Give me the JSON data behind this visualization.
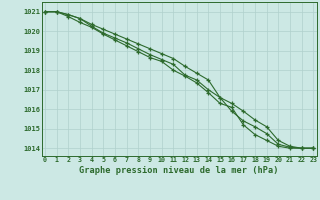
{
  "x": [
    0,
    1,
    2,
    3,
    4,
    5,
    6,
    7,
    8,
    9,
    10,
    11,
    12,
    13,
    14,
    15,
    16,
    17,
    18,
    19,
    20,
    21,
    22,
    23
  ],
  "line1": [
    1021.0,
    1021.0,
    1020.85,
    1020.65,
    1020.35,
    1020.1,
    1019.85,
    1019.6,
    1019.35,
    1019.1,
    1018.85,
    1018.6,
    1018.2,
    1017.85,
    1017.5,
    1016.6,
    1015.9,
    1015.4,
    1015.1,
    1014.75,
    1014.2,
    1014.05,
    1014.0,
    1014.0
  ],
  "line2": [
    1021.0,
    1021.0,
    1020.85,
    1020.65,
    1020.25,
    1019.9,
    1019.65,
    1019.4,
    1019.1,
    1018.8,
    1018.55,
    1018.3,
    1017.75,
    1017.5,
    1017.0,
    1016.6,
    1016.3,
    1015.9,
    1015.45,
    1015.1,
    1014.4,
    1014.1,
    1014.0,
    1014.0
  ],
  "line3": [
    1021.0,
    1021.0,
    1020.75,
    1020.45,
    1020.2,
    1019.85,
    1019.55,
    1019.25,
    1018.95,
    1018.65,
    1018.45,
    1018.0,
    1017.7,
    1017.35,
    1016.85,
    1016.3,
    1016.1,
    1015.2,
    1014.7,
    1014.4,
    1014.1,
    1014.0,
    1014.0,
    1014.0
  ],
  "line_color": "#2d6a2d",
  "bg_color": "#cce8e4",
  "grid_color": "#b0d0cc",
  "axis_color": "#2d6a2d",
  "xlabel": "Graphe pression niveau de la mer (hPa)",
  "ylim_min": 1013.6,
  "ylim_max": 1021.5,
  "yticks": [
    1014,
    1015,
    1016,
    1017,
    1018,
    1019,
    1020,
    1021
  ],
  "xticks": [
    0,
    1,
    2,
    3,
    4,
    5,
    6,
    7,
    8,
    9,
    10,
    11,
    12,
    13,
    14,
    15,
    16,
    17,
    18,
    19,
    20,
    21,
    22,
    23
  ]
}
